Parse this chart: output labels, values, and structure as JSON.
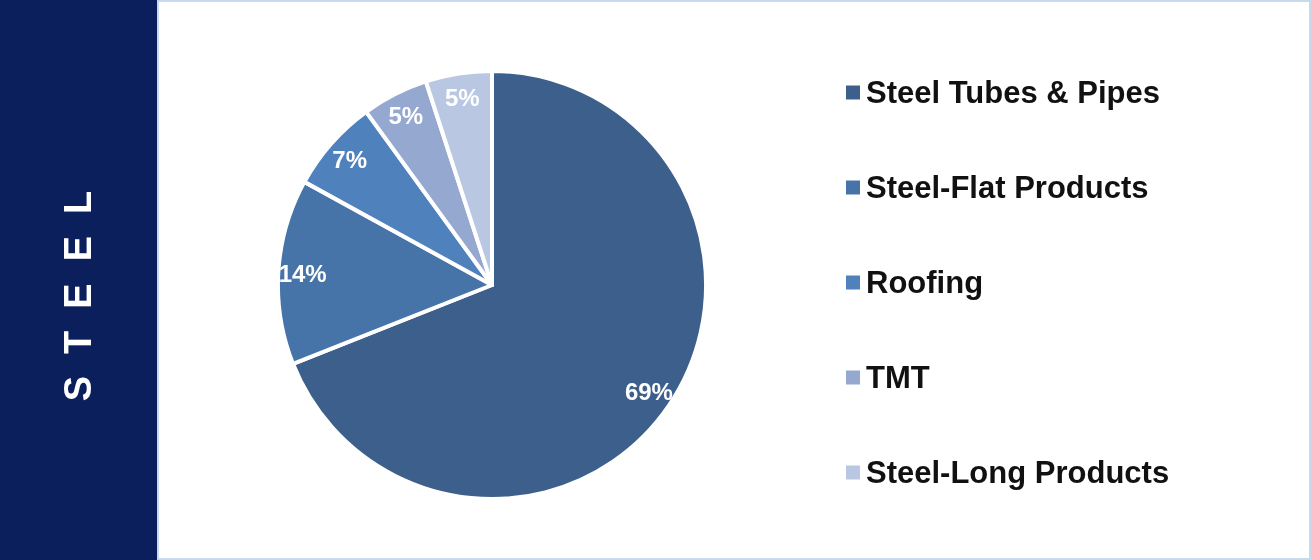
{
  "chart_data": {
    "type": "pie",
    "title": "STEEL",
    "categories": [
      "Steel Tubes & Pipes",
      "Steel-Flat Products",
      "Roofing",
      "TMT",
      "Steel-Long Products"
    ],
    "values": [
      69,
      14,
      7,
      5,
      5
    ],
    "value_labels": [
      "69%",
      "14%",
      "7%",
      "5%",
      "5%"
    ],
    "colors": [
      "#3d5f8c",
      "#4674a8",
      "#4f81bd",
      "#95a9d0",
      "#b9c7e2"
    ],
    "legend": "right"
  }
}
